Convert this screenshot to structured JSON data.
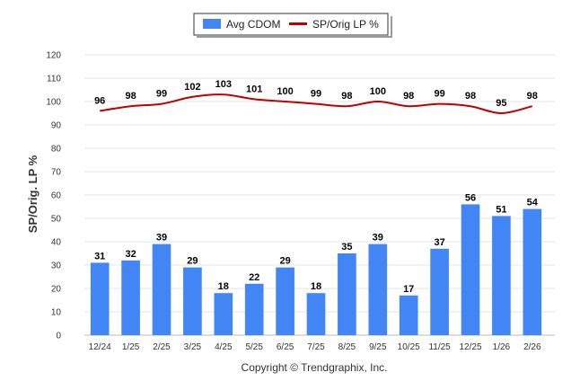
{
  "chart_data": {
    "type": "bar",
    "categories": [
      "12/24",
      "1/25",
      "2/25",
      "3/25",
      "4/25",
      "5/25",
      "6/25",
      "7/25",
      "8/25",
      "9/25",
      "10/25",
      "11/25",
      "12/25",
      "1/26",
      "2/26"
    ],
    "series": [
      {
        "name": "Avg CDOM",
        "type": "bar",
        "color": "#4285f4",
        "values": [
          31,
          32,
          39,
          29,
          18,
          22,
          29,
          18,
          35,
          39,
          17,
          37,
          56,
          51,
          54
        ]
      },
      {
        "name": "SP/Orig LP %",
        "type": "line",
        "color": "#c00000",
        "values": [
          96,
          98,
          99,
          102,
          103,
          101,
          100,
          99,
          98,
          100,
          98,
          99,
          98,
          95,
          98
        ]
      }
    ],
    "ylabel": "SP/Orig. LP %",
    "ylim": [
      0,
      120
    ],
    "yticks": [
      0,
      10,
      20,
      30,
      40,
      50,
      60,
      70,
      80,
      90,
      100,
      110,
      120
    ],
    "grid": true,
    "legend_position": "top-center",
    "footer": "Copyright © Trendgraphix, Inc."
  }
}
